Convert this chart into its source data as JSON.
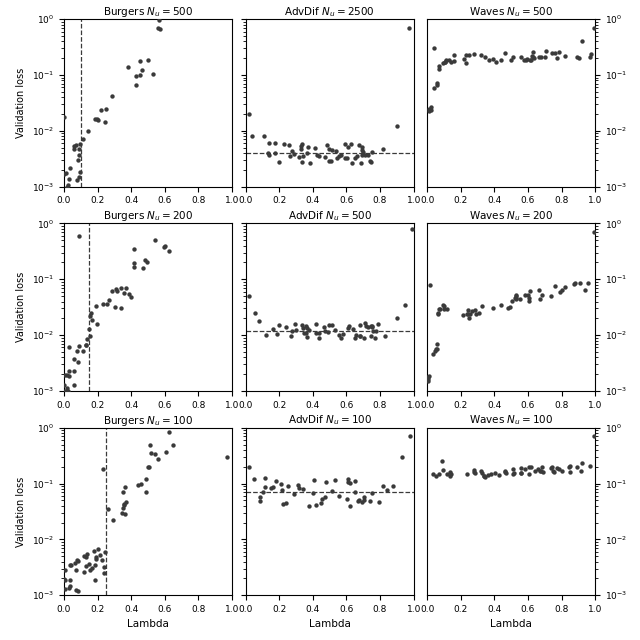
{
  "titles": [
    [
      "Burgers $N_u = 500$",
      "AdvDif $N_u = 2500$",
      "Waves $N_u = 500$"
    ],
    [
      "Burgers $N_u = 200$",
      "AdvDif $N_u = 500$",
      "Waves $N_u = 200$"
    ],
    [
      "Burgers $N_u = 100$",
      "AdvDif $N_u = 100$",
      "Waves $N_u = 100$"
    ]
  ],
  "ylabel": "Validation loss",
  "xlabel": "Lambda",
  "figsize": [
    6.4,
    6.4
  ],
  "dpi": 100,
  "marker_color": "#3a3a3a",
  "marker_size": 10,
  "marker_style": "o",
  "dashed_line_color": "#3a3a3a",
  "dashed_vlines": [
    [
      0.1,
      null,
      null
    ],
    [
      0.15,
      null,
      null
    ],
    [
      0.25,
      null,
      null
    ]
  ],
  "dashed_hlines": [
    [
      null,
      0.004,
      null
    ],
    [
      null,
      0.012,
      null
    ],
    [
      null,
      0.07,
      null
    ]
  ]
}
